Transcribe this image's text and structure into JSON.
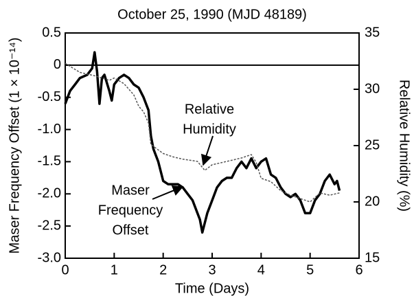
{
  "chart_data": {
    "type": "line",
    "title": "October 25, 1990 (MJD 48189)",
    "xlabel": "Time (Days)",
    "ylabel": "Maser Frequency Offset (1 × 10⁻¹⁴)",
    "y2label": "Relative Humidity (%)",
    "xlim": [
      0,
      6
    ],
    "xticks": [
      0,
      1,
      2,
      3,
      4,
      5,
      6
    ],
    "ylim": [
      -3,
      0.5
    ],
    "yticks": [
      0.5,
      0,
      -0.5,
      {
        "value": -1,
        "label": "-1.0"
      },
      -1.5,
      {
        "value": -2,
        "label": "-2.0"
      },
      -2.5,
      {
        "value": -3,
        "label": "-3.0"
      }
    ],
    "y2lim": [
      15,
      35
    ],
    "y2ticks": [
      15,
      20,
      25,
      30,
      35
    ],
    "series": [
      {
        "name": "Maser Frequency Offset",
        "color": "#000000",
        "x": [
          0,
          0.1,
          0.2,
          0.3,
          0.45,
          0.55,
          0.6,
          0.65,
          0.7,
          0.75,
          0.8,
          0.9,
          0.95,
          1.0,
          1.1,
          1.2,
          1.3,
          1.4,
          1.5,
          1.6,
          1.7,
          1.75,
          1.8,
          1.9,
          2.0,
          2.1,
          2.2,
          2.3,
          2.4,
          2.5,
          2.6,
          2.7,
          2.75,
          2.8,
          2.9,
          3.0,
          3.1,
          3.2,
          3.3,
          3.4,
          3.5,
          3.6,
          3.7,
          3.8,
          3.9,
          4.0,
          4.1,
          4.2,
          4.3,
          4.4,
          4.5,
          4.6,
          4.7,
          4.8,
          4.9,
          5.0,
          5.1,
          5.2,
          5.3,
          5.4,
          5.5,
          5.55,
          5.6
        ],
        "values": [
          -0.6,
          -0.4,
          -0.3,
          -0.2,
          -0.15,
          -0.05,
          0.2,
          -0.1,
          -0.6,
          -0.2,
          -0.15,
          -0.4,
          -0.55,
          -0.3,
          -0.2,
          -0.15,
          -0.2,
          -0.3,
          -0.35,
          -0.5,
          -0.7,
          -1.1,
          -1.3,
          -1.5,
          -1.8,
          -1.85,
          -1.85,
          -1.85,
          -1.9,
          -2.0,
          -2.1,
          -2.3,
          -2.4,
          -2.6,
          -2.3,
          -2.1,
          -1.9,
          -1.8,
          -1.75,
          -1.75,
          -1.6,
          -1.5,
          -1.6,
          -1.45,
          -1.6,
          -1.5,
          -1.45,
          -1.7,
          -1.75,
          -1.9,
          -2.0,
          -2.05,
          -2.0,
          -2.1,
          -2.3,
          -2.3,
          -2.1,
          -2.0,
          -1.8,
          -1.7,
          -1.85,
          -1.8,
          -1.95
        ]
      },
      {
        "name": "Relative Humidity",
        "color": "#555555",
        "axis": "y2",
        "x": [
          0,
          0.3,
          0.6,
          0.9,
          1.0,
          1.2,
          1.4,
          1.5,
          1.6,
          1.7,
          1.75,
          2.0,
          2.2,
          2.4,
          2.7,
          2.85,
          3.0,
          3.3,
          3.6,
          3.8,
          3.9,
          4.0,
          4.2,
          4.4,
          4.6,
          4.8,
          5.0,
          5.2,
          5.4,
          5.6
        ],
        "values": [
          32.3,
          31.5,
          31.2,
          30.8,
          31,
          30.5,
          29.5,
          28.5,
          28,
          27,
          25.1,
          24.3,
          24.0,
          23.8,
          23.6,
          22.8,
          23.3,
          23.6,
          23.9,
          24.2,
          23.5,
          22.1,
          21.8,
          21,
          20.6,
          20.3,
          20,
          20.8,
          20.6,
          20.8
        ]
      }
    ],
    "annotations": [
      {
        "lines": [
          "Relative",
          "Humidity"
        ]
      },
      {
        "lines": [
          "Maser",
          "Frequency",
          "Offset"
        ]
      }
    ]
  }
}
